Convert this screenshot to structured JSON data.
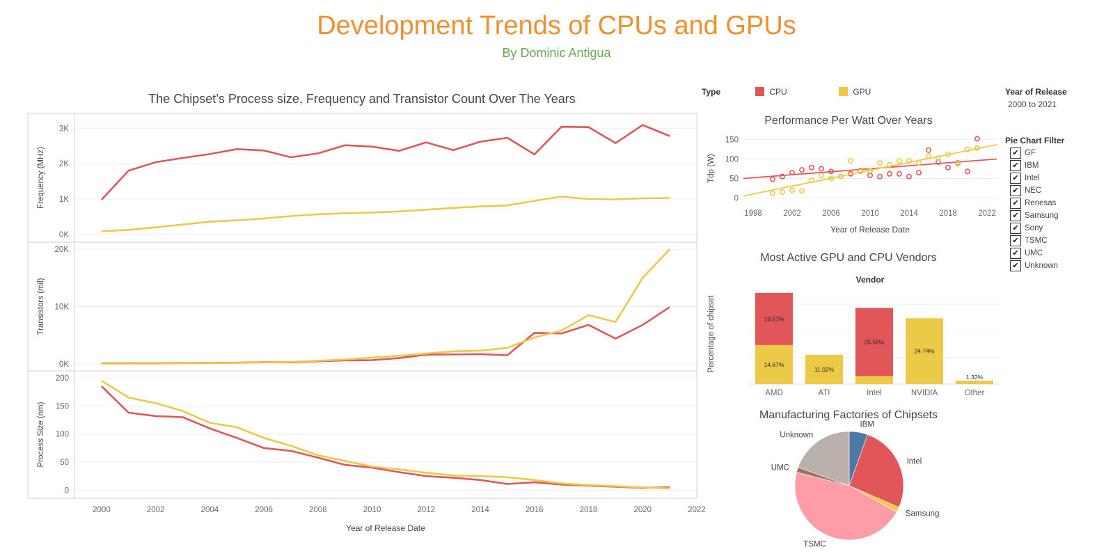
{
  "header": {
    "title": "Development Trends of CPUs and GPUs",
    "subtitle": "By Dominic Antigua"
  },
  "legend": {
    "title": "Type",
    "items": [
      {
        "label": "CPU",
        "color": "#e15759"
      },
      {
        "label": "GPU",
        "color": "#edc948"
      }
    ]
  },
  "year_filter": {
    "title": "Year of Release",
    "value": "2000 to 2021"
  },
  "pie_filter": {
    "title": "Pie Chart Filter",
    "items": [
      {
        "label": "GF",
        "checked": true
      },
      {
        "label": "IBM",
        "checked": true
      },
      {
        "label": "Intel",
        "checked": true
      },
      {
        "label": "NEC",
        "checked": true
      },
      {
        "label": "Renesas",
        "checked": true
      },
      {
        "label": "Samsung",
        "checked": true
      },
      {
        "label": "Sony",
        "checked": true
      },
      {
        "label": "TSMC",
        "checked": true
      },
      {
        "label": "UMC",
        "checked": true
      },
      {
        "label": "Unknown",
        "checked": true
      }
    ]
  },
  "chart_data": [
    {
      "type": "line",
      "title": "The Chipset’s Process size, Frequency and Transistor Count Over The Years",
      "xlabel": "Year of Release Date",
      "x": [
        2000,
        2001,
        2002,
        2003,
        2004,
        2005,
        2006,
        2007,
        2008,
        2009,
        2010,
        2011,
        2012,
        2013,
        2014,
        2015,
        2016,
        2017,
        2018,
        2019,
        2020,
        2021
      ],
      "xlim": [
        1999,
        2022
      ],
      "xticks": [
        "2000",
        "2002",
        "2004",
        "2006",
        "2008",
        "2010",
        "2012",
        "2014",
        "2016",
        "2018",
        "2020",
        "2022"
      ],
      "panels": [
        {
          "ylabel": "Frequency (MHz)",
          "ylim": [
            -100,
            3300
          ],
          "yticks": [
            {
              "v": 0,
              "label": "0K"
            },
            {
              "v": 1000,
              "label": "1K"
            },
            {
              "v": 2000,
              "label": "2K"
            },
            {
              "v": 3000,
              "label": "3K"
            }
          ],
          "series": [
            {
              "name": "CPU",
              "values": [
                980,
                1800,
                2040,
                2160,
                2270,
                2410,
                2370,
                2180,
                2290,
                2520,
                2480,
                2360,
                2600,
                2380,
                2620,
                2730,
                2260,
                3040,
                3030,
                2580,
                3090,
                2780
              ]
            },
            {
              "name": "GPU",
              "values": [
                90,
                130,
                200,
                280,
                360,
                400,
                450,
                520,
                570,
                600,
                620,
                650,
                700,
                750,
                790,
                820,
                950,
                1070,
                1000,
                990,
                1020,
                1030
              ]
            }
          ]
        },
        {
          "ylabel": "Transistors (mil)",
          "ylim": [
            -500,
            20500
          ],
          "yticks": [
            {
              "v": 0,
              "label": "0K"
            },
            {
              "v": 10000,
              "label": "10K"
            },
            {
              "v": 20000,
              "label": "20K"
            }
          ],
          "series": [
            {
              "name": "CPU",
              "values": [
                100,
                120,
                110,
                130,
                150,
                200,
                300,
                280,
                450,
                600,
                650,
                1000,
                1600,
                1650,
                1700,
                1500,
                5400,
                5300,
                6800,
                4400,
                6800,
                9900
              ]
            },
            {
              "name": "GPU",
              "values": [
                30,
                40,
                50,
                80,
                120,
                180,
                250,
                350,
                550,
                750,
                1100,
                1400,
                1800,
                2200,
                2300,
                2800,
                4600,
                5800,
                8500,
                7300,
                15000,
                20000
              ]
            }
          ]
        },
        {
          "ylabel": "Process Size (nm)",
          "ylim": [
            -7,
            205
          ],
          "yticks": [
            {
              "v": 0,
              "label": "0"
            },
            {
              "v": 50,
              "label": "50"
            },
            {
              "v": 100,
              "label": "100"
            },
            {
              "v": 150,
              "label": "150"
            },
            {
              "v": 200,
              "label": "200"
            }
          ],
          "series": [
            {
              "name": "CPU",
              "values": [
                185,
                138,
                132,
                130,
                110,
                93,
                75,
                70,
                58,
                45,
                40,
                32,
                25,
                22,
                18,
                11,
                14,
                10,
                8,
                6,
                4,
                5
              ]
            },
            {
              "name": "GPU",
              "values": [
                195,
                165,
                155,
                141,
                120,
                112,
                93,
                79,
                62,
                52,
                42,
                37,
                31,
                26,
                25,
                23,
                18,
                12,
                9,
                7,
                5,
                3
              ]
            }
          ]
        }
      ]
    },
    {
      "type": "scatter",
      "title": "Performance Per Watt  Over Years",
      "xlabel": "Year of Release Date",
      "ylabel": "Tdp (W)",
      "xlim": [
        1997,
        2023
      ],
      "ylim": [
        -10,
        160
      ],
      "xticks": [
        "1998",
        "2002",
        "2006",
        "2010",
        "2014",
        "2018",
        "2022"
      ],
      "yticks": [
        "0",
        "50",
        "100",
        "150"
      ],
      "series": [
        {
          "name": "CPU",
          "points": [
            [
              2000,
              48
            ],
            [
              2001,
              55
            ],
            [
              2002,
              65
            ],
            [
              2003,
              72
            ],
            [
              2004,
              78
            ],
            [
              2005,
              75
            ],
            [
              2006,
              68
            ],
            [
              2007,
              55
            ],
            [
              2008,
              62
            ],
            [
              2009,
              70
            ],
            [
              2010,
              58
            ],
            [
              2011,
              55
            ],
            [
              2012,
              62
            ],
            [
              2013,
              62
            ],
            [
              2014,
              55
            ],
            [
              2015,
              65
            ],
            [
              2016,
              123
            ],
            [
              2017,
              92
            ],
            [
              2018,
              78
            ],
            [
              2019,
              90
            ],
            [
              2020,
              68
            ],
            [
              2021,
              152
            ]
          ],
          "trend": [
            [
              1997,
              50
            ],
            [
              2023,
              100
            ]
          ]
        },
        {
          "name": "GPU",
          "points": [
            [
              2000,
              12
            ],
            [
              2001,
              15
            ],
            [
              2002,
              20
            ],
            [
              2003,
              18
            ],
            [
              2004,
              45
            ],
            [
              2005,
              58
            ],
            [
              2006,
              50
            ],
            [
              2007,
              55
            ],
            [
              2008,
              95
            ],
            [
              2009,
              68
            ],
            [
              2010,
              70
            ],
            [
              2011,
              90
            ],
            [
              2012,
              85
            ],
            [
              2013,
              95
            ],
            [
              2014,
              95
            ],
            [
              2015,
              90
            ],
            [
              2016,
              108
            ],
            [
              2017,
              102
            ],
            [
              2018,
              112
            ],
            [
              2019,
              88
            ],
            [
              2020,
              125
            ],
            [
              2021,
              128
            ]
          ],
          "trend": [
            [
              1997,
              5
            ],
            [
              2023,
              137
            ]
          ]
        }
      ]
    },
    {
      "type": "bar",
      "stacked": true,
      "title": "Most Active GPU and CPU Vendors",
      "xlabel": "Vendor",
      "ylabel": "Percentage of chipset",
      "categories": [
        "AMD",
        "ATI",
        "Intel",
        "NVIDIA",
        "Other"
      ],
      "ylim": [
        0,
        35
      ],
      "series": [
        {
          "name": "GPU",
          "values": [
            14.67,
            11.02,
            3.0,
            24.74,
            1.32
          ],
          "labels": [
            "14.67%",
            "11.02%",
            "",
            "24.74%",
            "1.32%"
          ]
        },
        {
          "name": "CPU",
          "values": [
            19.57,
            0,
            25.59,
            0,
            0
          ],
          "labels": [
            "19.57%",
            "",
            "25.59%",
            "",
            ""
          ]
        }
      ]
    },
    {
      "type": "pie",
      "title": "Manufacturing Factories of Chipsets",
      "slices": [
        {
          "label": "IBM",
          "value": 5.5,
          "color": "#4e79a7"
        },
        {
          "label": "Intel",
          "value": 26,
          "color": "#e15759"
        },
        {
          "label": "Samsung",
          "value": 1.5,
          "color": "#edc948"
        },
        {
          "label": "TSMC",
          "value": 46,
          "color": "#ff9da7"
        },
        {
          "label": "UMC",
          "value": 1.5,
          "color": "#9c755f"
        },
        {
          "label": "Unknown",
          "value": 19.5,
          "color": "#bab0ac"
        }
      ]
    }
  ]
}
